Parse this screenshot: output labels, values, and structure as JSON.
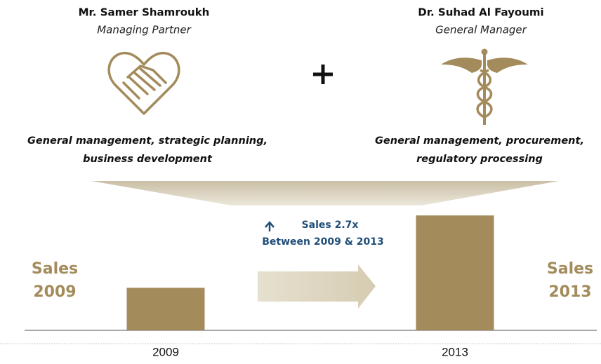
{
  "people": [
    {
      "name": "Mr. Samer Shamroukh",
      "role": "Managing Partner",
      "duties": [
        "General management, strategic planning,",
        "business development"
      ]
    },
    {
      "name": "Dr. Suhad Al Fayoumi",
      "role": "General Manager",
      "duties": [
        "General management, procurement,",
        "regulatory processing"
      ]
    }
  ],
  "chart_data": {
    "type": "bar",
    "categories": [
      "2009",
      "2013"
    ],
    "values": [
      1,
      2.7
    ],
    "color": "#a38b5c",
    "ylim": [
      0,
      3
    ],
    "annotations": [
      "Sales 2.7x",
      "Between 2009 & 2013"
    ],
    "side_labels": [
      [
        "Sales",
        "2009"
      ],
      [
        "Sales",
        "2013"
      ]
    ]
  }
}
